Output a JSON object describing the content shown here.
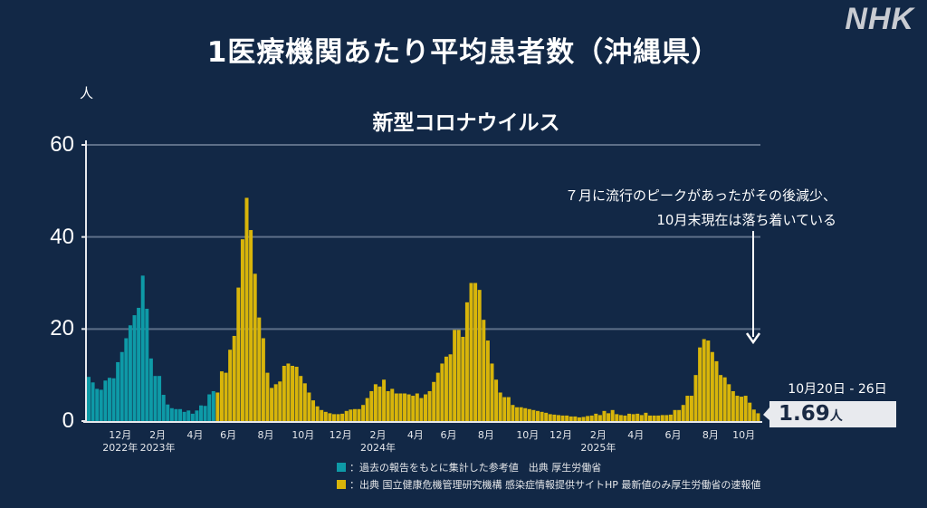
{
  "title": "1医療機関あたり平均患者数（沖縄県）",
  "logo": "NHK",
  "chart_data": {
    "type": "bar",
    "title": "新型コロナウイルス",
    "ylabel": "人",
    "ylim": [
      0,
      60
    ],
    "yticks": [
      "0",
      "20",
      "40",
      "60"
    ],
    "grid": true,
    "colors": {
      "reference": "#0e9aa7",
      "official": "#d8b50a",
      "background": "#122846"
    },
    "series": [
      {
        "name": "過去の報告をもとに集計した参考値",
        "color": "#0e9aa7",
        "values": [
          9.6,
          8.4,
          7,
          6.8,
          8.8,
          9.4,
          9.3,
          12.8,
          15,
          18,
          20.8,
          23,
          24.6,
          31.6,
          24.4,
          13.6,
          9.8,
          9.8,
          5.7,
          3.6,
          2.8,
          2.6,
          2.6,
          2.0,
          2.3,
          1.6,
          2.3,
          3.4,
          3.3,
          5.8,
          6.5
        ]
      },
      {
        "name": "国立健康危機管理研究機構 感染症情報提供サイトHP",
        "color": "#d8b50a",
        "values": [
          6.2,
          10.8,
          10.5,
          15.5,
          18.5,
          29,
          39.5,
          48.5,
          41.5,
          32,
          22.5,
          18,
          10.5,
          7.2,
          8,
          8.6,
          12,
          12.5,
          12,
          11.8,
          9.8,
          8.2,
          6.2,
          4.5,
          3.2,
          2.4,
          2,
          1.7,
          1.5,
          1.5,
          1.6,
          2.2,
          2.5,
          2.6,
          2.6,
          3.5,
          5,
          6.5,
          8,
          7.5,
          9,
          6.5,
          7,
          6,
          6,
          6,
          5.8,
          5.5,
          6,
          5,
          5.8,
          6.5,
          8.5,
          10.5,
          12.5,
          14,
          14.5,
          19.8,
          19.8,
          18.3,
          25.8,
          30,
          30,
          28.5,
          22,
          17.5,
          12.5,
          9,
          6.2,
          5.2,
          5.2,
          3.5,
          3,
          3,
          2.8,
          2.6,
          2.4,
          2.2,
          2,
          1.8,
          1.5,
          1.4,
          1.3,
          1.2,
          1.2,
          1.0,
          1.0,
          0.8,
          0.9,
          1.1,
          1.2,
          1.6,
          1.3,
          2.2,
          1.7,
          2.4,
          1.5,
          1.3,
          1.2,
          1.6,
          1.5,
          1.6,
          1.3,
          1.8,
          1.2,
          1.2,
          1.2,
          1.3,
          1.3,
          1.4,
          2.4,
          2.4,
          3.5,
          5.5,
          5.5,
          10,
          16,
          17.8,
          17.5,
          15,
          13,
          10,
          9.5,
          8,
          6.5,
          5.5,
          5.3,
          5.5,
          4,
          2.5,
          1.69
        ]
      }
    ],
    "xticks": [
      {
        "label": "12月",
        "week": 8
      },
      {
        "label": "2月",
        "week": 17
      },
      {
        "label": "4月",
        "week": 26
      },
      {
        "label": "6月",
        "week": 34
      },
      {
        "label": "8月",
        "week": 43
      },
      {
        "label": "10月",
        "week": 52
      },
      {
        "label": "12月",
        "week": 61
      },
      {
        "label": "2月",
        "week": 70
      },
      {
        "label": "4月",
        "week": 79
      },
      {
        "label": "6月",
        "week": 87
      },
      {
        "label": "8月",
        "week": 96
      },
      {
        "label": "10月",
        "week": 106
      },
      {
        "label": "12月",
        "week": 114
      },
      {
        "label": "2月",
        "week": 123
      },
      {
        "label": "4月",
        "week": 132
      },
      {
        "label": "6月",
        "week": 141
      },
      {
        "label": "8月",
        "week": 150
      },
      {
        "label": "10月",
        "week": 158
      }
    ],
    "years": [
      {
        "label": "2022年",
        "week": 8
      },
      {
        "label": "2023年",
        "week": 17
      },
      {
        "label": "2024年",
        "week": 70
      },
      {
        "label": "2025年",
        "week": 123
      }
    ],
    "annotation": [
      "７月に流行のピークがあったがその後減少、",
      "10月末現在は落ち着いている"
    ],
    "latest": {
      "period": "10月20日 - 26日",
      "value": "1.69",
      "unit": "人"
    },
    "legend": [
      {
        "text": "：過去の報告をもとに集計した参考値　出典 厚生労働省",
        "color": "#0e9aa7"
      },
      {
        "text": "：出典 国立健康危機管理研究機構 感染症情報提供サイトHP 最新値のみ厚生労働省の速報値",
        "color": "#d8b50a"
      }
    ]
  }
}
